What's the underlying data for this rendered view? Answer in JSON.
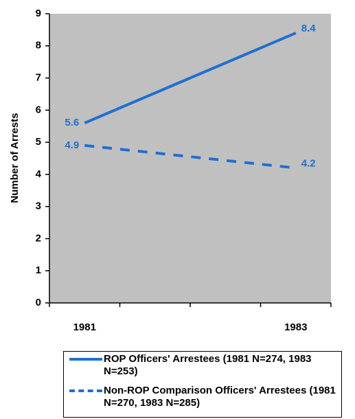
{
  "chart_data": {
    "type": "line",
    "y_label": "Number of Arrests",
    "categories": [
      "1981",
      "1983"
    ],
    "series": [
      {
        "name": "ROP Officers' Arrestees (1981 N=274, 1983 N=253)",
        "color": "#1f6fd0",
        "dash": false,
        "values": [
          5.6,
          8.4
        ]
      },
      {
        "name": "Non-ROP Comparison Officers' Arrestees (1981 N=270, 1983 N=285)",
        "color": "#1f6fd0",
        "dash": true,
        "values": [
          4.9,
          4.2
        ]
      }
    ],
    "ylim": [
      0,
      9
    ],
    "yticks": [
      0,
      1,
      2,
      3,
      4,
      5,
      6,
      7,
      8,
      9
    ],
    "plot_background": "#c0c0c0"
  }
}
